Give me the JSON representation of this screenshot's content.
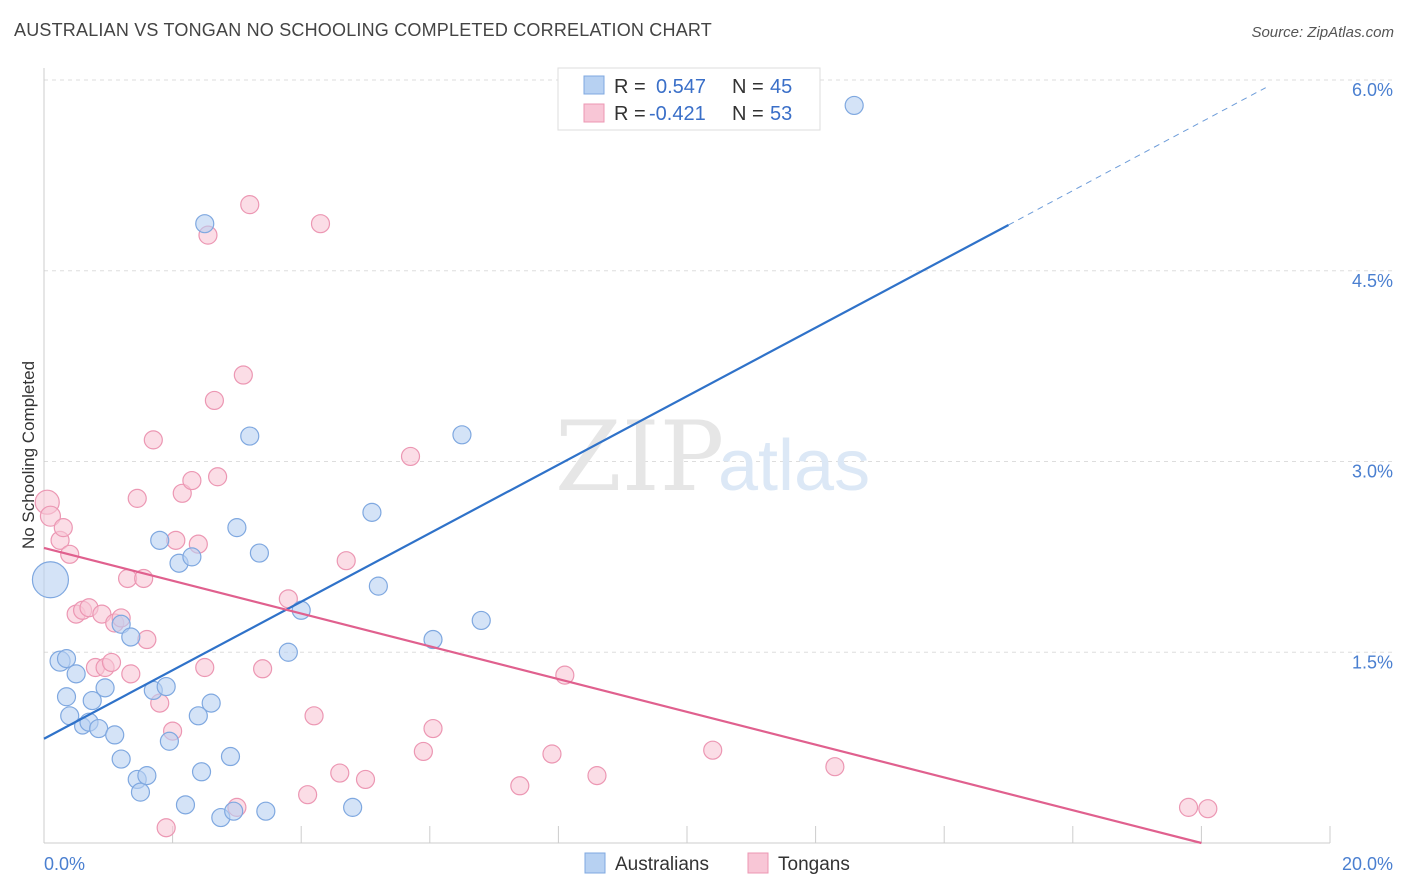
{
  "title": "AUSTRALIAN VS TONGAN NO SCHOOLING COMPLETED CORRELATION CHART",
  "source": "Source: ZipAtlas.com",
  "watermark": {
    "zip": "ZIP",
    "atlas": "atlas"
  },
  "colors": {
    "blue_fill": "#b7d1f2",
    "blue_stroke": "#7fa8e0",
    "blue_line": "#2f72c9",
    "pink_fill": "#f8c6d6",
    "pink_stroke": "#ec97b3",
    "pink_line": "#e0608e",
    "tick_label": "#4a7fd0",
    "grid": "#dddddd"
  },
  "legend": {
    "rows": [
      {
        "r_label": "R =",
        "r_value": "0.547",
        "n_label": "N =",
        "n_value": "45",
        "series": "blue"
      },
      {
        "r_label": "R =",
        "r_value": "-0.421",
        "n_label": "N =",
        "n_value": "53",
        "series": "pink"
      }
    ]
  },
  "bottom_legend": [
    {
      "label": "Australians",
      "series": "blue"
    },
    {
      "label": "Tongans",
      "series": "pink"
    }
  ],
  "chart_data": {
    "type": "scatter",
    "title": "AUSTRALIAN VS TONGAN NO SCHOOLING COMPLETED CORRELATION CHART",
    "xlabel": "",
    "ylabel": "No Schooling Completed",
    "xlim": [
      0,
      20
    ],
    "ylim": [
      0,
      6.0
    ],
    "x_tick_labels": [
      {
        "value": 0,
        "label": "0.0%"
      },
      {
        "value": 20,
        "label": "20.0%"
      }
    ],
    "y_tick_labels": [
      {
        "value": 1.5,
        "label": "1.5%"
      },
      {
        "value": 3.0,
        "label": "3.0%"
      },
      {
        "value": 4.5,
        "label": "4.5%"
      },
      {
        "value": 6.0,
        "label": "6.0%"
      }
    ],
    "grid": true,
    "legend_position": "top-center",
    "series": [
      {
        "name": "Australians",
        "color": "#b7d1f2",
        "points": [
          [
            0.1,
            2.07,
            18
          ],
          [
            0.25,
            1.43,
            10
          ],
          [
            0.35,
            1.45,
            9
          ],
          [
            0.35,
            1.15,
            9
          ],
          [
            0.4,
            1.0,
            9
          ],
          [
            0.5,
            1.33,
            9
          ],
          [
            0.6,
            0.92,
            8
          ],
          [
            0.7,
            0.95,
            9
          ],
          [
            0.75,
            1.12,
            9
          ],
          [
            0.85,
            0.9,
            9
          ],
          [
            0.95,
            1.22,
            9
          ],
          [
            1.1,
            0.85,
            9
          ],
          [
            1.2,
            0.66,
            9
          ],
          [
            1.2,
            1.72,
            9
          ],
          [
            1.35,
            1.62,
            9
          ],
          [
            1.45,
            0.5,
            9
          ],
          [
            1.5,
            0.4,
            9
          ],
          [
            1.6,
            0.53,
            9
          ],
          [
            1.7,
            1.2,
            9
          ],
          [
            1.8,
            2.38,
            9
          ],
          [
            1.9,
            1.23,
            9
          ],
          [
            1.95,
            0.8,
            9
          ],
          [
            2.1,
            2.2,
            9
          ],
          [
            2.2,
            0.3,
            9
          ],
          [
            2.3,
            2.25,
            9
          ],
          [
            2.4,
            1.0,
            9
          ],
          [
            2.45,
            0.56,
            9
          ],
          [
            2.5,
            4.87,
            9
          ],
          [
            2.6,
            1.1,
            9
          ],
          [
            2.75,
            0.2,
            9
          ],
          [
            2.9,
            0.68,
            9
          ],
          [
            2.95,
            0.25,
            9
          ],
          [
            3.0,
            2.48,
            9
          ],
          [
            3.2,
            3.2,
            9
          ],
          [
            3.35,
            2.28,
            9
          ],
          [
            3.45,
            0.25,
            9
          ],
          [
            3.8,
            1.5,
            9
          ],
          [
            4.0,
            1.83,
            9
          ],
          [
            4.8,
            0.28,
            9
          ],
          [
            5.1,
            2.6,
            9
          ],
          [
            5.2,
            2.02,
            9
          ],
          [
            6.05,
            1.6,
            9
          ],
          [
            6.5,
            3.21,
            9
          ],
          [
            6.8,
            1.75,
            9
          ],
          [
            12.6,
            5.8,
            9
          ]
        ],
        "trend": {
          "x0": 0,
          "y0": 0.82,
          "x1": 15.0,
          "y1": 4.86,
          "dash_to_x": 19.0,
          "dash_to_y": 5.94
        }
      },
      {
        "name": "Tongans",
        "color": "#f8c6d6",
        "points": [
          [
            0.05,
            2.68,
            12
          ],
          [
            0.1,
            2.57,
            10
          ],
          [
            0.25,
            2.38,
            9
          ],
          [
            0.3,
            2.48,
            9
          ],
          [
            0.4,
            2.27,
            9
          ],
          [
            0.5,
            1.8,
            9
          ],
          [
            0.6,
            1.83,
            9
          ],
          [
            0.7,
            1.85,
            9
          ],
          [
            0.8,
            1.38,
            9
          ],
          [
            0.9,
            1.8,
            9
          ],
          [
            0.95,
            1.38,
            9
          ],
          [
            1.05,
            1.42,
            9
          ],
          [
            1.1,
            1.73,
            9
          ],
          [
            1.2,
            1.77,
            9
          ],
          [
            1.3,
            2.08,
            9
          ],
          [
            1.35,
            1.33,
            9
          ],
          [
            1.45,
            2.71,
            9
          ],
          [
            1.55,
            2.08,
            9
          ],
          [
            1.6,
            1.6,
            9
          ],
          [
            1.7,
            3.17,
            9
          ],
          [
            1.8,
            1.1,
            9
          ],
          [
            1.9,
            0.12,
            9
          ],
          [
            2.0,
            0.88,
            9
          ],
          [
            2.05,
            2.38,
            9
          ],
          [
            2.15,
            2.75,
            9
          ],
          [
            2.3,
            2.85,
            9
          ],
          [
            2.4,
            2.35,
            9
          ],
          [
            2.5,
            1.38,
            9
          ],
          [
            2.55,
            4.78,
            9
          ],
          [
            2.65,
            3.48,
            9
          ],
          [
            2.7,
            2.88,
            9
          ],
          [
            3.0,
            0.28,
            9
          ],
          [
            3.1,
            3.68,
            9
          ],
          [
            3.2,
            5.02,
            9
          ],
          [
            3.4,
            1.37,
            9
          ],
          [
            3.8,
            1.92,
            9
          ],
          [
            4.1,
            0.38,
            9
          ],
          [
            4.2,
            1.0,
            9
          ],
          [
            4.3,
            4.87,
            9
          ],
          [
            4.6,
            0.55,
            9
          ],
          [
            4.7,
            2.22,
            9
          ],
          [
            5.0,
            0.5,
            9
          ],
          [
            5.7,
            3.04,
            9
          ],
          [
            5.9,
            0.72,
            9
          ],
          [
            6.05,
            0.9,
            9
          ],
          [
            7.4,
            0.45,
            9
          ],
          [
            7.9,
            0.7,
            9
          ],
          [
            8.1,
            1.32,
            9
          ],
          [
            8.6,
            0.53,
            9
          ],
          [
            10.4,
            0.73,
            9
          ],
          [
            12.3,
            0.6,
            9
          ],
          [
            17.8,
            0.28,
            9
          ],
          [
            18.1,
            0.27,
            9
          ]
        ],
        "trend": {
          "x0": 0,
          "y0": 2.32,
          "x1": 18.0,
          "y1": 0.0
        }
      }
    ]
  }
}
